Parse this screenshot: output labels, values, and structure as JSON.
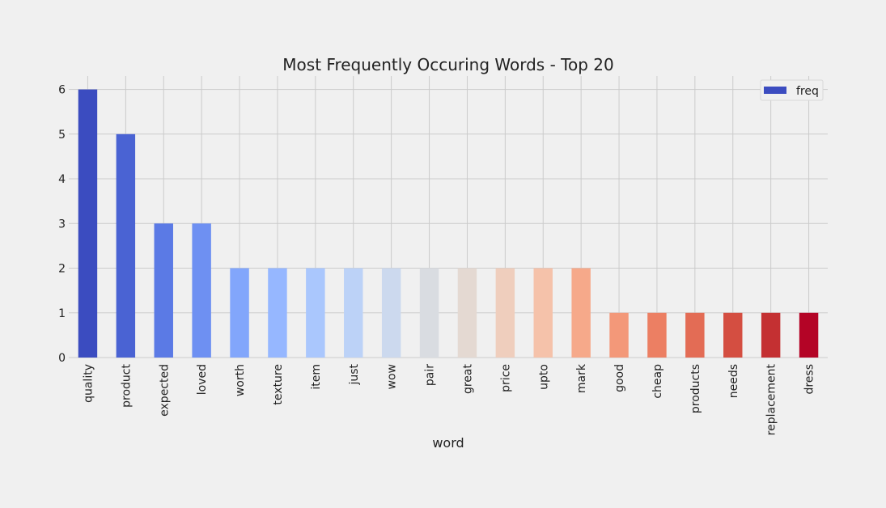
{
  "chart_data": {
    "type": "bar",
    "title": "Most Frequently Occuring Words - Top 20",
    "xlabel": "word",
    "ylabel": "",
    "categories": [
      "quality",
      "product",
      "expected",
      "loved",
      "worth",
      "texture",
      "item",
      "just",
      "wow",
      "pair",
      "great",
      "price",
      "upto",
      "mark",
      "good",
      "cheap",
      "products",
      "needs",
      "replacement",
      "dress"
    ],
    "series": [
      {
        "name": "freq",
        "values": [
          6,
          5,
          3,
          3,
          2,
          2,
          2,
          2,
          2,
          2,
          2,
          2,
          2,
          2,
          1,
          1,
          1,
          1,
          1,
          1
        ]
      }
    ],
    "ylim": [
      0,
      6.3
    ],
    "yticks": [
      0,
      1,
      2,
      3,
      4,
      5,
      6
    ],
    "grid": true,
    "legend_position": "top-right",
    "bar_colors": [
      "#3b4cc0",
      "#4a63d3",
      "#5b7ae5",
      "#6e90f2",
      "#82a6fb",
      "#96b7ff",
      "#aac7fd",
      "#bcd2f7",
      "#ccd9ee",
      "#d9dce1",
      "#e4d9d2",
      "#efcebd",
      "#f5c2aa",
      "#f6a98a",
      "#f39879",
      "#ec7f63",
      "#e36c55",
      "#d44e41",
      "#c43032",
      "#b40426"
    ],
    "legend_color": "#3b4cc0",
    "background": "#f0f0f0",
    "grid_color": "#cbcbcb"
  }
}
